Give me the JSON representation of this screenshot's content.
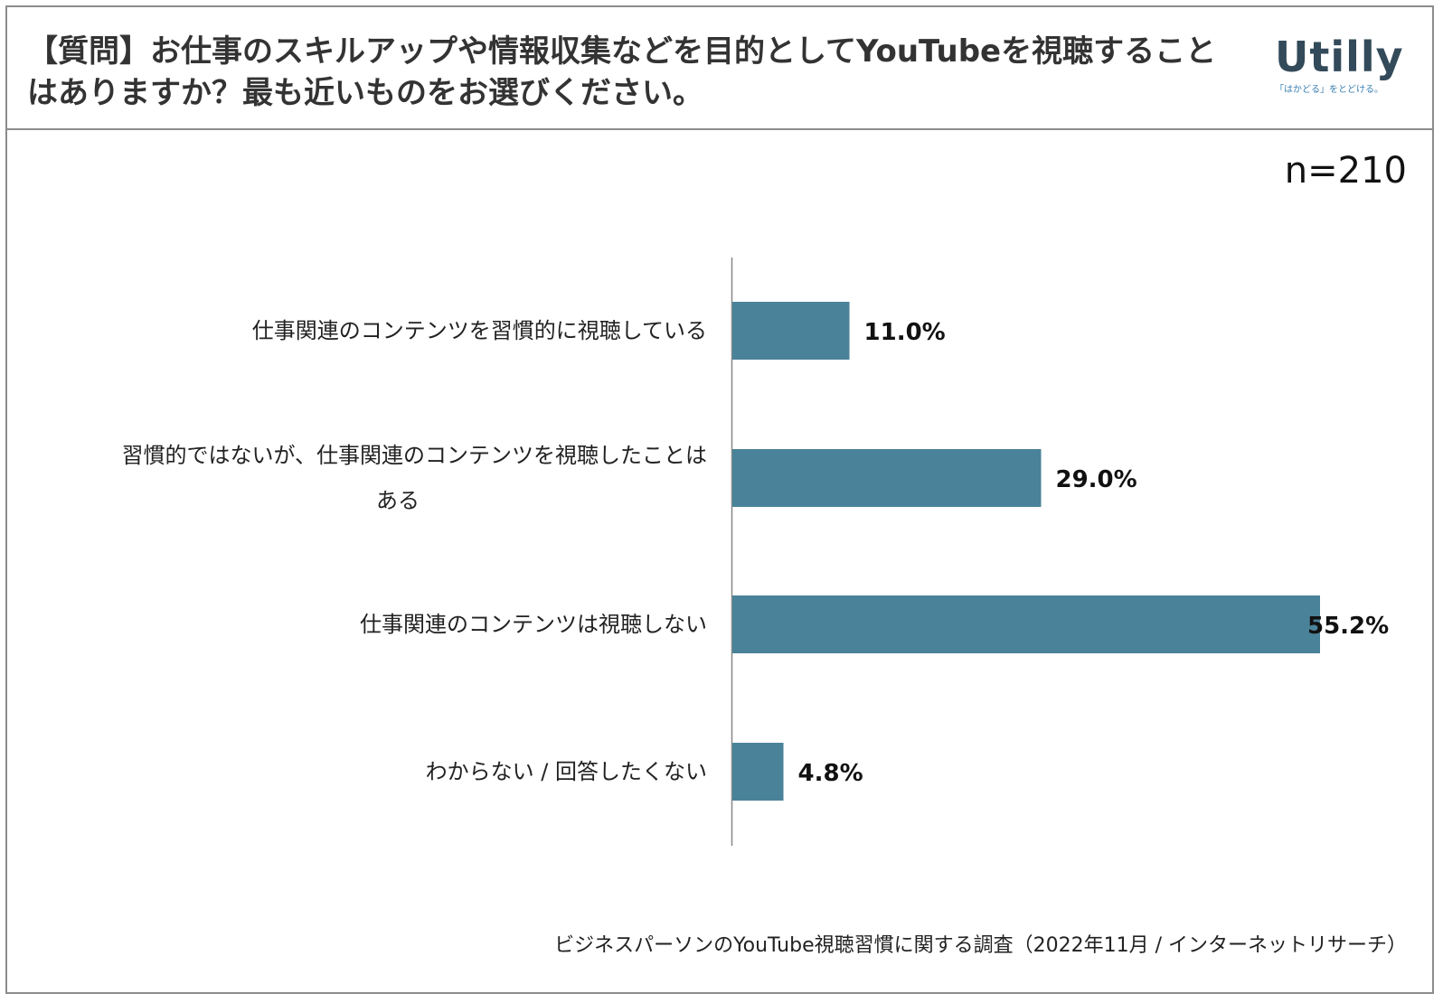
{
  "header": {
    "title": "【質問】お仕事のスキルアップや情報収集などを目的としてYouTubeを視聴することはありますか？最も近いものをお選びください。",
    "logo_text": "Utilly",
    "logo_tagline": "「はかどる」をとどける。"
  },
  "sample_label": "n=210",
  "footer": {
    "source": "ビジネスパーソンのYouTube視聴習慣に関する調査（2022年11月 / インターネットリサーチ）"
  },
  "chart_data": {
    "type": "bar",
    "orientation": "horizontal",
    "categories": [
      "仕事関連のコンテンツを習慣的に視聴している",
      "習慣的ではないが、仕事関連のコンテンツを視聴したことはある",
      "仕事関連のコンテンツは視聴しない",
      "わからない / 回答したくない"
    ],
    "category_lines": [
      [
        "仕事関連のコンテンツを習慣的に視聴している"
      ],
      [
        "習慣的ではないが、仕事関連のコンテンツを視聴したことは",
        "ある"
      ],
      [
        "仕事関連のコンテンツは視聴しない"
      ],
      [
        "わからない / 回答したくない"
      ]
    ],
    "values": [
      11.0,
      29.0,
      55.2,
      4.8
    ],
    "value_labels": [
      "11.0%",
      "29.0%",
      "55.2%",
      "4.8%"
    ],
    "unit": "%",
    "xlim": [
      0,
      60
    ],
    "bar_color": "#4a8399",
    "grid": false,
    "legend": "none"
  }
}
